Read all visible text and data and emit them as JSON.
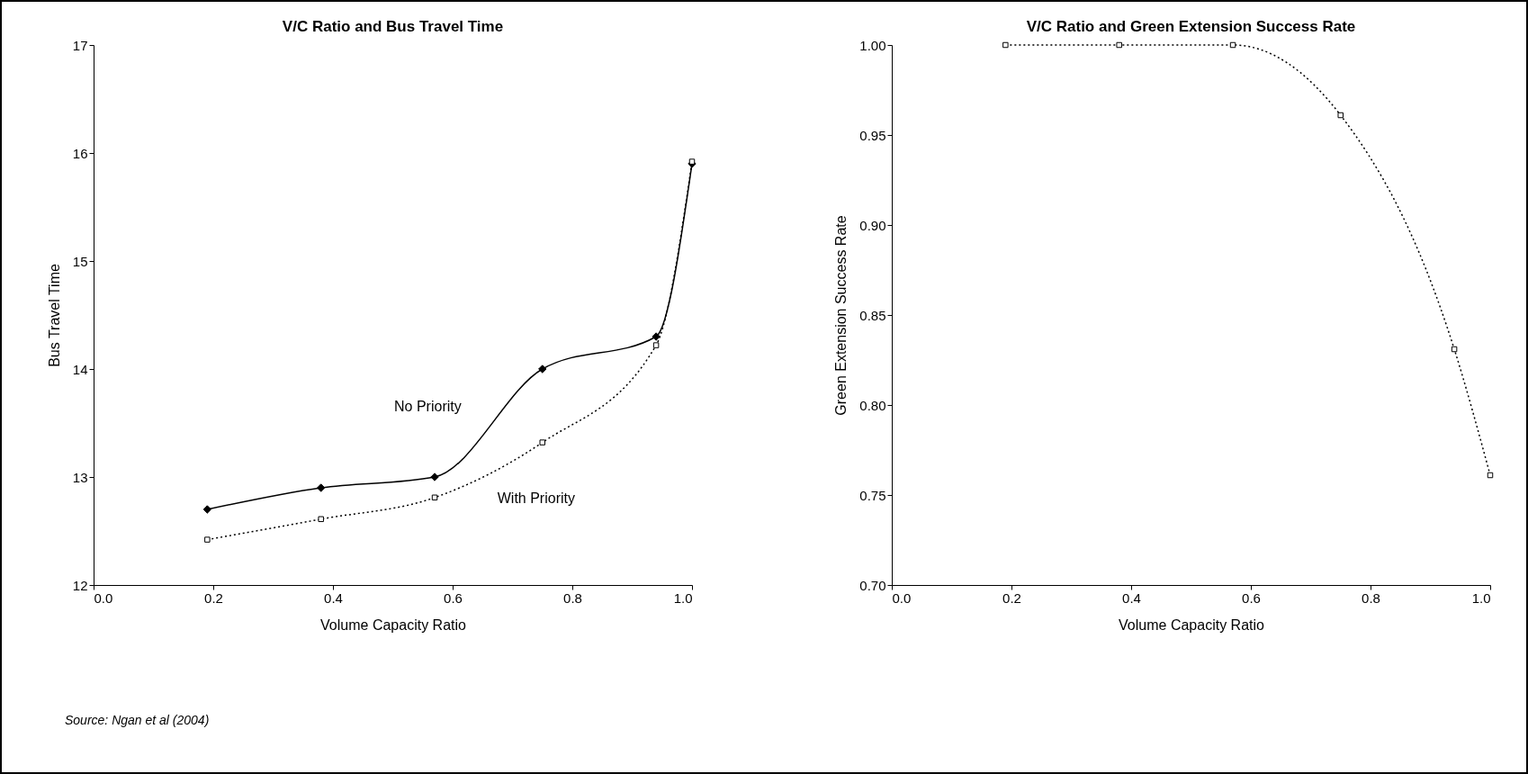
{
  "chart_data": [
    {
      "type": "line",
      "title": "V/C Ratio and Bus Travel Time",
      "xlabel": "Volume Capacity Ratio",
      "ylabel": "Bus Travel Time",
      "x": [
        0.19,
        0.38,
        0.57,
        0.75,
        0.94,
        1.0
      ],
      "xlim": [
        0,
        1
      ],
      "xticks": [
        {
          "value": 0,
          "label": "0.0"
        },
        {
          "value": 0.2,
          "label": "0.2"
        },
        {
          "value": 0.4,
          "label": "0.4"
        },
        {
          "value": 0.6,
          "label": "0.6"
        },
        {
          "value": 0.8,
          "label": "0.8"
        },
        {
          "value": 1,
          "label": "1.0"
        }
      ],
      "ylim": [
        12,
        17
      ],
      "yticks": [
        12,
        13,
        14,
        15,
        16,
        17
      ],
      "grid": false,
      "series": [
        {
          "name": "No Priority",
          "color": "#000000",
          "marker": "diamond",
          "line_style": "solid",
          "values": [
            12.7,
            12.9,
            13.0,
            14.0,
            14.3,
            15.9
          ]
        },
        {
          "name": "With Priority",
          "color": "#000000",
          "marker": "square",
          "line_style": "dotted",
          "values": [
            12.42,
            12.61,
            12.81,
            13.32,
            14.22,
            15.92
          ]
        }
      ],
      "annotations": [
        "Source:  Ngan et al (2004)"
      ]
    },
    {
      "type": "line",
      "title": "V/C Ratio and Green Extension Success Rate",
      "xlabel": "Volume Capacity Ratio",
      "ylabel": "Green Extension Success Rate",
      "x": [
        0.19,
        0.38,
        0.57,
        0.75,
        0.94,
        1.0
      ],
      "xlim": [
        0,
        1
      ],
      "xticks": [
        {
          "value": 0,
          "label": "0.0"
        },
        {
          "value": 0.2,
          "label": "0.2"
        },
        {
          "value": 0.4,
          "label": "0.4"
        },
        {
          "value": 0.6,
          "label": "0.6"
        },
        {
          "value": 0.8,
          "label": "0.8"
        },
        {
          "value": 1,
          "label": "1.0"
        }
      ],
      "ylim": [
        0.7,
        1.0
      ],
      "yticks": [
        {
          "value": 0.7,
          "label": "0.70"
        },
        {
          "value": 0.75,
          "label": "0.75"
        },
        {
          "value": 0.8,
          "label": "0.80"
        },
        {
          "value": 0.85,
          "label": "0.85"
        },
        {
          "value": 0.9,
          "label": "0.90"
        },
        {
          "value": 0.95,
          "label": "0.95"
        },
        {
          "value": 1,
          "label": "1.00"
        }
      ],
      "grid": false,
      "series": [
        {
          "color": "#000000",
          "marker": "square",
          "line_style": "dotted",
          "values": [
            1.0,
            1.0,
            1.0,
            0.961,
            0.831,
            0.761
          ]
        }
      ]
    }
  ]
}
